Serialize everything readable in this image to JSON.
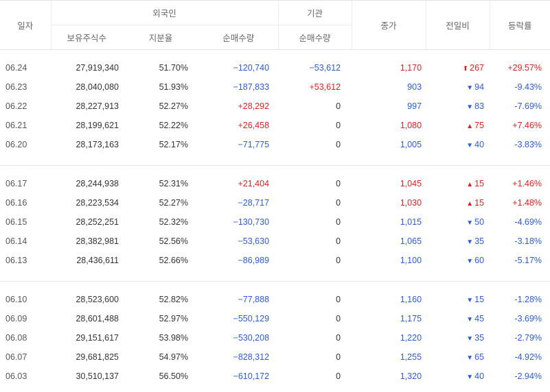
{
  "header": {
    "date": "일자",
    "foreign": "외국인",
    "institution": "기관",
    "holdings": "보유주식수",
    "share": "지분율",
    "foreign_net": "순매수량",
    "inst_net": "순매수량",
    "close": "종가",
    "change": "전일비",
    "rate": "등락률"
  },
  "colors": {
    "up": "#e02020",
    "down": "#2b5bd7"
  },
  "groups": [
    [
      {
        "date": "06.24",
        "holdings": "27,919,340",
        "share": "51.70%",
        "foreign_net": "−120,740",
        "foreign_dir": "down",
        "inst_net": "−53,612",
        "inst_dir": "down",
        "close": "1,170",
        "close_dir": "up",
        "arrow": "⬆",
        "arrow_icon": "limit-up-arrow-icon",
        "change": "267",
        "change_dir": "up",
        "rate": "+29.57%"
      },
      {
        "date": "06.23",
        "holdings": "28,040,080",
        "share": "51.93%",
        "foreign_net": "−187,833",
        "foreign_dir": "down",
        "inst_net": "+53,612",
        "inst_dir": "up",
        "close": "903",
        "close_dir": "down",
        "arrow": "▼",
        "arrow_icon": "down-arrow-icon",
        "change": "94",
        "change_dir": "down",
        "rate": "-9.43%"
      },
      {
        "date": "06.22",
        "holdings": "28,227,913",
        "share": "52.27%",
        "foreign_net": "+28,292",
        "foreign_dir": "up",
        "inst_net": "0",
        "inst_dir": "flat",
        "close": "997",
        "close_dir": "down",
        "arrow": "▼",
        "arrow_icon": "down-arrow-icon",
        "change": "83",
        "change_dir": "down",
        "rate": "-7.69%"
      },
      {
        "date": "06.21",
        "holdings": "28,199,621",
        "share": "52.22%",
        "foreign_net": "+26,458",
        "foreign_dir": "up",
        "inst_net": "0",
        "inst_dir": "flat",
        "close": "1,080",
        "close_dir": "up",
        "arrow": "▲",
        "arrow_icon": "up-arrow-icon",
        "change": "75",
        "change_dir": "up",
        "rate": "+7.46%"
      },
      {
        "date": "06.20",
        "holdings": "28,173,163",
        "share": "52.17%",
        "foreign_net": "−71,775",
        "foreign_dir": "down",
        "inst_net": "0",
        "inst_dir": "flat",
        "close": "1,005",
        "close_dir": "down",
        "arrow": "▼",
        "arrow_icon": "down-arrow-icon",
        "change": "40",
        "change_dir": "down",
        "rate": "-3.83%"
      }
    ],
    [
      {
        "date": "06.17",
        "holdings": "28,244,938",
        "share": "52.31%",
        "foreign_net": "+21,404",
        "foreign_dir": "up",
        "inst_net": "0",
        "inst_dir": "flat",
        "close": "1,045",
        "close_dir": "up",
        "arrow": "▲",
        "arrow_icon": "up-arrow-icon",
        "change": "15",
        "change_dir": "up",
        "rate": "+1.46%"
      },
      {
        "date": "06.16",
        "holdings": "28,223,534",
        "share": "52.27%",
        "foreign_net": "−28,717",
        "foreign_dir": "down",
        "inst_net": "0",
        "inst_dir": "flat",
        "close": "1,030",
        "close_dir": "up",
        "arrow": "▲",
        "arrow_icon": "up-arrow-icon",
        "change": "15",
        "change_dir": "up",
        "rate": "+1.48%"
      },
      {
        "date": "06.15",
        "holdings": "28,252,251",
        "share": "52.32%",
        "foreign_net": "−130,730",
        "foreign_dir": "down",
        "inst_net": "0",
        "inst_dir": "flat",
        "close": "1,015",
        "close_dir": "down",
        "arrow": "▼",
        "arrow_icon": "down-arrow-icon",
        "change": "50",
        "change_dir": "down",
        "rate": "-4.69%"
      },
      {
        "date": "06.14",
        "holdings": "28,382,981",
        "share": "52.56%",
        "foreign_net": "−53,630",
        "foreign_dir": "down",
        "inst_net": "0",
        "inst_dir": "flat",
        "close": "1,065",
        "close_dir": "down",
        "arrow": "▼",
        "arrow_icon": "down-arrow-icon",
        "change": "35",
        "change_dir": "down",
        "rate": "-3.18%"
      },
      {
        "date": "06.13",
        "holdings": "28,436,611",
        "share": "52.66%",
        "foreign_net": "−86,989",
        "foreign_dir": "down",
        "inst_net": "0",
        "inst_dir": "flat",
        "close": "1,100",
        "close_dir": "down",
        "arrow": "▼",
        "arrow_icon": "down-arrow-icon",
        "change": "60",
        "change_dir": "down",
        "rate": "-5.17%"
      }
    ],
    [
      {
        "date": "06.10",
        "holdings": "28,523,600",
        "share": "52.82%",
        "foreign_net": "−77,888",
        "foreign_dir": "down",
        "inst_net": "0",
        "inst_dir": "flat",
        "close": "1,160",
        "close_dir": "down",
        "arrow": "▼",
        "arrow_icon": "down-arrow-icon",
        "change": "15",
        "change_dir": "down",
        "rate": "-1.28%"
      },
      {
        "date": "06.09",
        "holdings": "28,601,488",
        "share": "52.97%",
        "foreign_net": "−550,129",
        "foreign_dir": "down",
        "inst_net": "0",
        "inst_dir": "flat",
        "close": "1,175",
        "close_dir": "down",
        "arrow": "▼",
        "arrow_icon": "down-arrow-icon",
        "change": "45",
        "change_dir": "down",
        "rate": "-3.69%"
      },
      {
        "date": "06.08",
        "holdings": "29,151,617",
        "share": "53.98%",
        "foreign_net": "−530,208",
        "foreign_dir": "down",
        "inst_net": "0",
        "inst_dir": "flat",
        "close": "1,220",
        "close_dir": "down",
        "arrow": "▼",
        "arrow_icon": "down-arrow-icon",
        "change": "35",
        "change_dir": "down",
        "rate": "-2.79%"
      },
      {
        "date": "06.07",
        "holdings": "29,681,825",
        "share": "54.97%",
        "foreign_net": "−828,312",
        "foreign_dir": "down",
        "inst_net": "0",
        "inst_dir": "flat",
        "close": "1,255",
        "close_dir": "down",
        "arrow": "▼",
        "arrow_icon": "down-arrow-icon",
        "change": "65",
        "change_dir": "down",
        "rate": "-4.92%"
      },
      {
        "date": "06.03",
        "holdings": "30,510,137",
        "share": "56.50%",
        "foreign_net": "−610,172",
        "foreign_dir": "down",
        "inst_net": "0",
        "inst_dir": "flat",
        "close": "1,320",
        "close_dir": "down",
        "arrow": "▼",
        "arrow_icon": "down-arrow-icon",
        "change": "40",
        "change_dir": "down",
        "rate": "-2.94%"
      }
    ]
  ]
}
